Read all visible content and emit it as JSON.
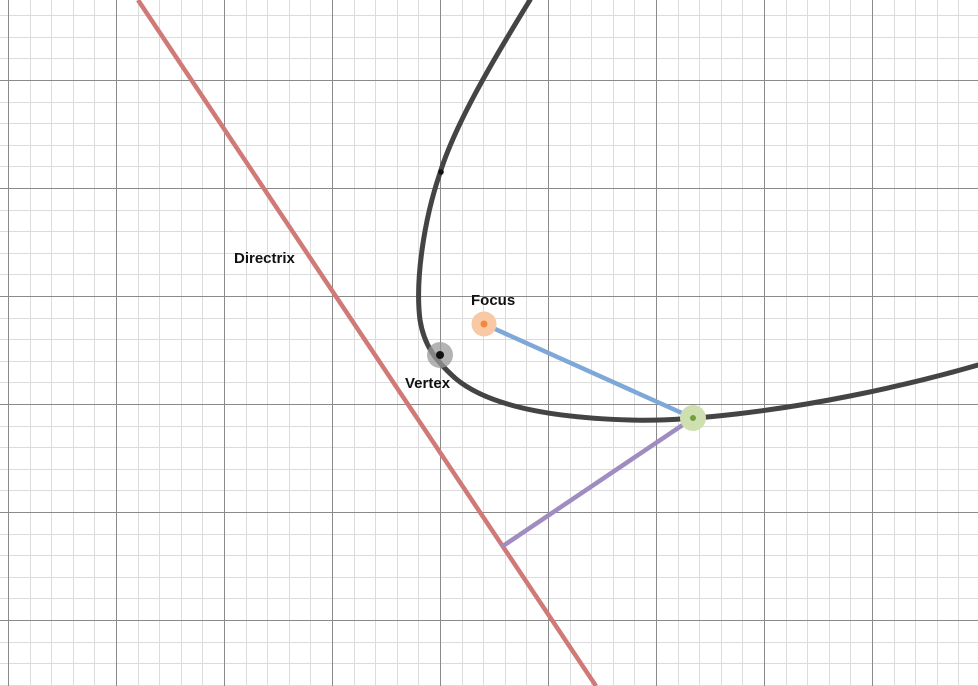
{
  "labels": {
    "directrix": "Directrix",
    "focus": "Focus",
    "vertex": "Vertex"
  },
  "colors": {
    "curve": "#444444",
    "directrix": "#d07a78",
    "focus_segment": "#7ea8d8",
    "perpendicular_segment": "#a08cc0",
    "focus_point": "#f5863a",
    "focus_halo": "#f8c9a4",
    "vertex_point": "#111111",
    "vertex_halo": "#9a9a9a",
    "moving_point": "#6fa03a",
    "moving_halo": "#cfe0b0"
  }
}
